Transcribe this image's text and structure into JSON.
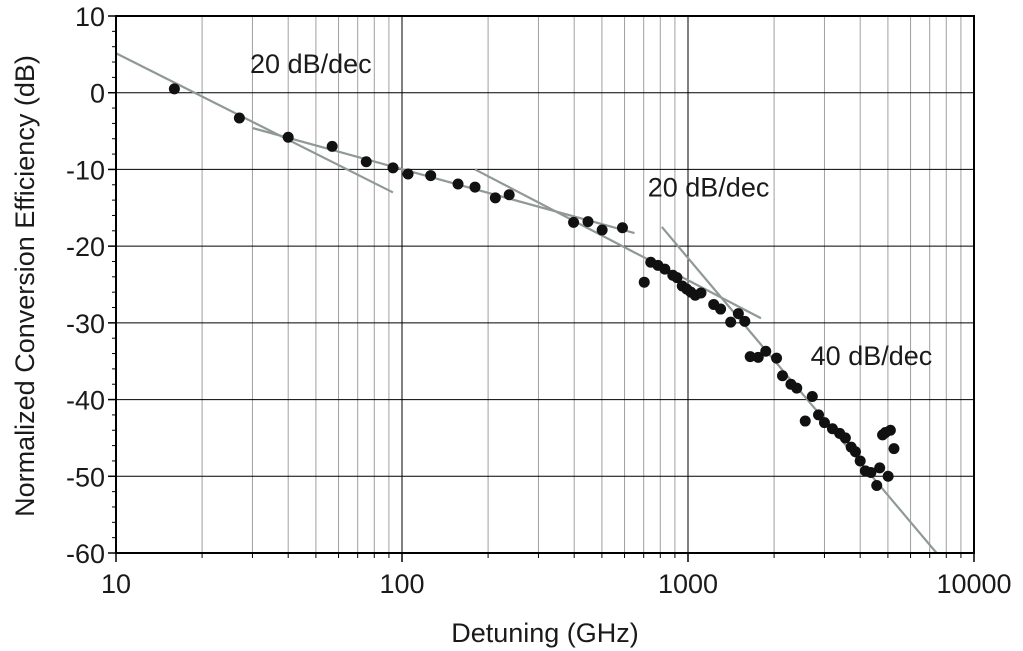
{
  "chart_data": {
    "type": "scatter",
    "title": "",
    "xlabel": "Detuning (GHz)",
    "ylabel": "Normalized Conversion Efficiency (dB)",
    "xscale": "log",
    "xlim": [
      10,
      10000
    ],
    "ylim": [
      -60,
      10
    ],
    "grid": true,
    "x_ticks": [
      10,
      100,
      1000,
      10000
    ],
    "x_tick_labels": [
      "10",
      "100",
      "1000",
      "10000"
    ],
    "y_ticks": [
      10,
      0,
      -10,
      -20,
      -30,
      -40,
      -50,
      -60
    ],
    "y_tick_labels": [
      "10",
      "0",
      "-10",
      "-20",
      "-30",
      "-40",
      "-50",
      "-60"
    ],
    "colors": {
      "points": "#111111",
      "fit_lines": "#909a94",
      "grid_major": "#000000",
      "grid_minor": "#a0a0a0"
    },
    "series": [
      {
        "x": [
          16,
          27,
          40,
          57,
          75,
          93,
          105,
          126,
          157,
          180,
          212,
          237,
          398,
          447,
          501,
          590,
          703,
          741,
          785,
          830,
          885,
          915,
          955,
          990,
          1023,
          1060,
          1110,
          1230,
          1300,
          1410,
          1500,
          1580,
          1650,
          1760,
          1870,
          2040,
          2140,
          2290,
          2400,
          2570,
          2720,
          2860,
          3000,
          3200,
          3390,
          3550,
          3720,
          3850,
          4000,
          4170,
          4360,
          4570,
          4680,
          4790,
          4900,
          5010,
          5100,
          5250
        ],
        "y": [
          0.5,
          -3.3,
          -5.8,
          -7.0,
          -9.0,
          -9.8,
          -10.6,
          -10.8,
          -11.9,
          -12.3,
          -13.7,
          -13.3,
          -16.9,
          -16.8,
          -17.9,
          -17.6,
          -24.7,
          -22.1,
          -22.5,
          -23.0,
          -23.8,
          -24.1,
          -25.2,
          -25.6,
          -26.0,
          -26.4,
          -26.1,
          -27.6,
          -28.2,
          -29.9,
          -28.8,
          -29.8,
          -34.4,
          -34.5,
          -33.7,
          -34.6,
          -36.9,
          -38.0,
          -38.5,
          -42.8,
          -39.6,
          -42.0,
          -43.0,
          -43.8,
          -44.4,
          -45.0,
          -46.2,
          -46.8,
          -48.0,
          -49.3,
          -49.5,
          -51.2,
          -48.9,
          -44.6,
          -44.3,
          -50.0,
          -44.0,
          -46.4
        ]
      }
    ],
    "fit_lines": [
      {
        "x": [
          9,
          93
        ],
        "y": [
          6,
          -13
        ]
      },
      {
        "x": [
          30,
          650
        ],
        "y": [
          -4.6,
          -18.3
        ]
      },
      {
        "x": [
          180,
          1800
        ],
        "y": [
          -10,
          -29.4
        ]
      },
      {
        "x": [
          810,
          8000
        ],
        "y": [
          -17.5,
          -61.5
        ]
      }
    ],
    "annotations": [
      {
        "text": "20 dB/dec",
        "x": 48,
        "y": 2.6
      },
      {
        "text": "20 dB/dec",
        "x": 1180,
        "y": -13.5
      },
      {
        "text": "40 dB/dec",
        "x": 4380,
        "y": -35.5
      }
    ]
  }
}
